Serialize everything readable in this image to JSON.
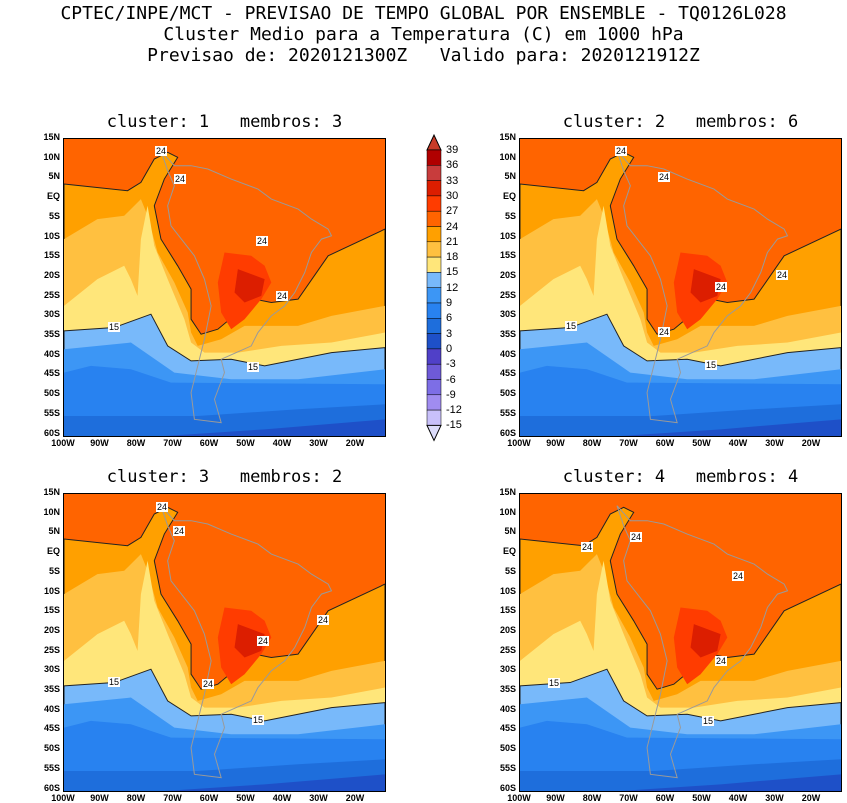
{
  "header": {
    "line1": "CPTEC/INPE/MCT - PREVISAO DE TEMPO GLOBAL POR ENSEMBLE - TQ0126L028",
    "line2": "Cluster Medio para a Temperatura (C) em 1000 hPa",
    "line3": "Previsao de: 2020121300Z   Valido para: 2020121912Z"
  },
  "panels": [
    {
      "title": "cluster: 1   membros: 3",
      "contour_labels": [
        "24",
        "24",
        "24",
        "24",
        "15",
        "15"
      ]
    },
    {
      "title": "cluster: 2   membros: 6",
      "contour_labels": [
        "24",
        "24",
        "24",
        "24",
        "24",
        "15",
        "15"
      ]
    },
    {
      "title": "cluster: 3   membros: 2",
      "contour_labels": [
        "24",
        "24",
        "24",
        "24",
        "24",
        "15",
        "15"
      ]
    },
    {
      "title": "cluster: 4   membros: 4",
      "contour_labels": [
        "24",
        "24",
        "24",
        "24",
        "15",
        "15"
      ]
    }
  ],
  "axes": {
    "lat_ticks": [
      "15N",
      "10N",
      "5N",
      "EQ",
      "5S",
      "10S",
      "15S",
      "20S",
      "25S",
      "30S",
      "35S",
      "40S",
      "45S",
      "50S",
      "55S",
      "60S"
    ],
    "lon_ticks": [
      "100W",
      "90W",
      "80W",
      "70W",
      "60W",
      "50W",
      "40W",
      "30W",
      "20W"
    ]
  },
  "colorbar": {
    "labels": [
      "39",
      "36",
      "33",
      "30",
      "27",
      "24",
      "21",
      "18",
      "15",
      "12",
      "9",
      "6",
      "3",
      "0",
      "-3",
      "-6",
      "-9",
      "-12",
      "-15"
    ],
    "colors": [
      "#b00000",
      "#c83c3c",
      "#dc1e00",
      "#ff3c00",
      "#ff6400",
      "#ffa000",
      "#ffc040",
      "#ffe67a",
      "#78b9fa",
      "#3c96f5",
      "#2882f0",
      "#1e6edc",
      "#1e50c8",
      "#5040c8",
      "#6e5ad8",
      "#7d6ee6",
      "#a08cf0",
      "#c8c0fa"
    ],
    "top_color": "#c83c28",
    "bottom_color": "#dcdcfa"
  }
}
